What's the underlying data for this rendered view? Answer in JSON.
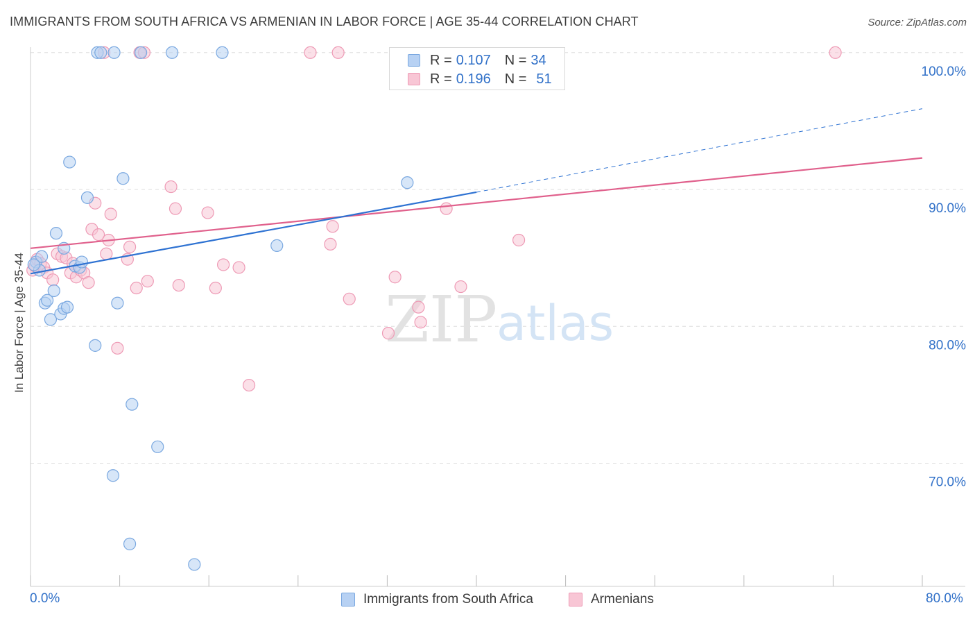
{
  "header": {
    "title": "IMMIGRANTS FROM SOUTH AFRICA VS ARMENIAN IN LABOR FORCE | AGE 35-44 CORRELATION CHART",
    "source": "Source: ZipAtlas.com"
  },
  "watermark": {
    "zip": "ZIP",
    "atlas": "atlas"
  },
  "legend": {
    "series1": {
      "r_label": "R = ",
      "r_value": "0.107",
      "n_label": "N = ",
      "n_value": "34"
    },
    "series2": {
      "r_label": "R = ",
      "r_value": "0.196",
      "n_label": "N = ",
      "n_value": "51"
    }
  },
  "colors": {
    "blue_fill": "#b7d1f3",
    "blue_stroke": "#7aa8e0",
    "blue_line": "#2e72d2",
    "pink_fill": "#f8c6d5",
    "pink_stroke": "#ee9ab5",
    "pink_line": "#e0608c",
    "axis_text": "#3070c8",
    "grid": "#dddddd"
  },
  "chart_data": {
    "type": "scatter",
    "title": "IMMIGRANTS FROM SOUTH AFRICA VS ARMENIAN IN LABOR FORCE | AGE 35-44 CORRELATION CHART",
    "xlabel": "",
    "ylabel": "In Labor Force | Age 35-44",
    "xlim": [
      0,
      80
    ],
    "ylim": [
      61,
      100.8
    ],
    "x_tick_labels": [
      "0.0%",
      "80.0%"
    ],
    "y_ticks": [
      {
        "value": 100,
        "label": "100.0%"
      },
      {
        "value": 90,
        "label": "90.0%"
      },
      {
        "value": 80,
        "label": "80.0%"
      },
      {
        "value": 70,
        "label": "70.0%"
      }
    ],
    "series": [
      {
        "name": "Immigrants from South Africa",
        "r": 0.107,
        "n": 34,
        "points": [
          [
            0.5,
            84.7
          ],
          [
            0.8,
            84.1
          ],
          [
            1.0,
            85.1
          ],
          [
            1.3,
            81.7
          ],
          [
            1.5,
            81.9
          ],
          [
            1.8,
            80.5
          ],
          [
            2.1,
            82.6
          ],
          [
            2.3,
            86.8
          ],
          [
            2.7,
            80.9
          ],
          [
            3.0,
            81.3
          ],
          [
            3.3,
            81.4
          ],
          [
            3.0,
            85.7
          ],
          [
            3.5,
            92.0
          ],
          [
            4.0,
            84.4
          ],
          [
            4.4,
            84.3
          ],
          [
            4.6,
            84.7
          ],
          [
            5.1,
            89.4
          ],
          [
            5.8,
            78.6
          ],
          [
            6.0,
            100.0
          ],
          [
            6.3,
            100.0
          ],
          [
            7.4,
            69.1
          ],
          [
            7.5,
            100.0
          ],
          [
            7.8,
            81.7
          ],
          [
            8.3,
            90.8
          ],
          [
            8.9,
            64.1
          ],
          [
            9.1,
            74.3
          ],
          [
            9.9,
            100.0
          ],
          [
            11.4,
            71.2
          ],
          [
            12.7,
            100.0
          ],
          [
            14.7,
            62.6
          ],
          [
            17.2,
            100.0
          ],
          [
            22.1,
            85.9
          ],
          [
            33.8,
            90.5
          ],
          [
            0.3,
            84.5
          ]
        ],
        "trend": {
          "x0": 0,
          "y0": 83.85,
          "x1": 40,
          "y1": 89.8,
          "dash_to_x": 80,
          "dash_to_y": 95.9
        }
      },
      {
        "name": "Armenians",
        "r": 0.196,
        "n": 51,
        "points": [
          [
            0.2,
            84.1
          ],
          [
            0.4,
            84.4
          ],
          [
            0.6,
            84.9
          ],
          [
            0.9,
            84.6
          ],
          [
            1.2,
            84.3
          ],
          [
            1.5,
            83.9
          ],
          [
            2.0,
            83.4
          ],
          [
            2.4,
            85.3
          ],
          [
            2.8,
            85.1
          ],
          [
            3.2,
            85.0
          ],
          [
            3.6,
            83.9
          ],
          [
            3.8,
            84.6
          ],
          [
            4.1,
            83.6
          ],
          [
            4.5,
            84.1
          ],
          [
            4.8,
            83.9
          ],
          [
            5.2,
            83.2
          ],
          [
            5.5,
            87.1
          ],
          [
            5.8,
            89.0
          ],
          [
            6.1,
            86.7
          ],
          [
            6.6,
            100.0
          ],
          [
            6.8,
            85.3
          ],
          [
            7.0,
            86.3
          ],
          [
            7.2,
            88.2
          ],
          [
            7.8,
            78.4
          ],
          [
            8.7,
            84.9
          ],
          [
            8.9,
            85.8
          ],
          [
            9.5,
            82.8
          ],
          [
            9.8,
            100.0
          ],
          [
            10.2,
            100.0
          ],
          [
            10.5,
            83.3
          ],
          [
            12.6,
            90.2
          ],
          [
            13.0,
            88.6
          ],
          [
            13.3,
            83.0
          ],
          [
            15.9,
            88.3
          ],
          [
            16.6,
            82.8
          ],
          [
            17.3,
            84.5
          ],
          [
            18.7,
            84.3
          ],
          [
            19.6,
            75.7
          ],
          [
            25.1,
            100.0
          ],
          [
            26.9,
            86.0
          ],
          [
            27.1,
            87.3
          ],
          [
            27.6,
            100.0
          ],
          [
            28.6,
            82.0
          ],
          [
            32.1,
            79.5
          ],
          [
            32.7,
            83.6
          ],
          [
            34.8,
            81.4
          ],
          [
            35.0,
            80.3
          ],
          [
            37.3,
            88.6
          ],
          [
            38.6,
            82.9
          ],
          [
            43.8,
            86.3
          ],
          [
            72.2,
            100.0
          ]
        ],
        "trend": {
          "x0": 0,
          "y0": 85.7,
          "x1": 80,
          "y1": 92.3
        }
      }
    ]
  }
}
